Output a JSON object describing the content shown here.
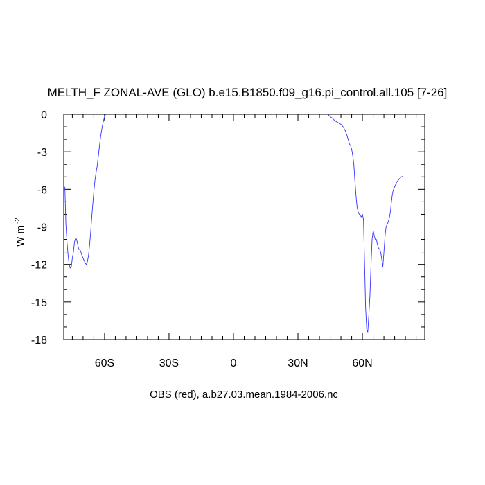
{
  "chart_data": {
    "type": "line",
    "title": "MELTH_F ZONAL-AVE (GLO) b.e15.B1850.f09_g16.pi_control.all.105 [7-26]",
    "xlabel": "OBS (red), a.b27.03.mean.1984-2006.nc",
    "ylabel": "W m",
    "ylabel_superscript": "-2",
    "xlim": [
      -79,
      89
    ],
    "ylim": [
      -18,
      0
    ],
    "x_ticks": [
      {
        "value": -60,
        "label": "60S"
      },
      {
        "value": -30,
        "label": "30S"
      },
      {
        "value": 0,
        "label": "0"
      },
      {
        "value": 30,
        "label": "30N"
      },
      {
        "value": 60,
        "label": "60N"
      }
    ],
    "y_ticks": [
      {
        "value": 0,
        "label": "0"
      },
      {
        "value": -3,
        "label": "-3"
      },
      {
        "value": -6,
        "label": "-6"
      },
      {
        "value": -9,
        "label": "-9"
      },
      {
        "value": -12,
        "label": "-12"
      },
      {
        "value": -15,
        "label": "-15"
      },
      {
        "value": -18,
        "label": "-18"
      }
    ],
    "series": [
      {
        "color": "#3333ff",
        "segments": [
          [
            [
              -78.5,
              -5.8
            ],
            [
              -78,
              -8.8
            ],
            [
              -77.5,
              -10.2
            ],
            [
              -77,
              -11.2
            ],
            [
              -76.5,
              -12.0
            ],
            [
              -76,
              -12.3
            ],
            [
              -75.5,
              -12.2
            ],
            [
              -75,
              -11.5
            ],
            [
              -74.5,
              -11.0
            ],
            [
              -74,
              -10.2
            ],
            [
              -73.5,
              -9.9
            ],
            [
              -73,
              -10.0
            ],
            [
              -72.5,
              -10.4
            ],
            [
              -72,
              -10.8
            ],
            [
              -71.5,
              -10.8
            ],
            [
              -71,
              -11.0
            ],
            [
              -70.5,
              -11.3
            ],
            [
              -70,
              -11.5
            ],
            [
              -69.5,
              -11.7
            ],
            [
              -69,
              -11.9
            ],
            [
              -68.5,
              -12.0
            ],
            [
              -68,
              -11.8
            ],
            [
              -67.5,
              -11.3
            ],
            [
              -67,
              -10.5
            ],
            [
              -66.5,
              -9.5
            ],
            [
              -66,
              -8.3
            ],
            [
              -65.5,
              -7.2
            ],
            [
              -65,
              -6.2
            ],
            [
              -64.5,
              -5.3
            ],
            [
              -64,
              -4.7
            ],
            [
              -63.5,
              -4.2
            ],
            [
              -63,
              -3.5
            ],
            [
              -62.5,
              -2.7
            ],
            [
              -62,
              -2.0
            ],
            [
              -61.5,
              -1.4
            ],
            [
              -61,
              -0.9
            ],
            [
              -60.5,
              -0.5
            ],
            [
              -60,
              -0.2
            ],
            [
              -59.5,
              0
            ]
          ],
          [
            [
              44,
              0
            ],
            [
              45,
              -0.2
            ],
            [
              46,
              -0.3
            ],
            [
              47,
              -0.5
            ],
            [
              48,
              -0.6
            ],
            [
              49,
              -0.7
            ],
            [
              50,
              -0.8
            ],
            [
              51,
              -1.0
            ],
            [
              52,
              -1.3
            ],
            [
              53,
              -1.8
            ],
            [
              54,
              -2.4
            ],
            [
              54.5,
              -2.5
            ],
            [
              55,
              -2.8
            ],
            [
              55.5,
              -3.3
            ],
            [
              56,
              -4.0
            ],
            [
              56.5,
              -5.3
            ],
            [
              57,
              -6.5
            ],
            [
              57.5,
              -7.4
            ],
            [
              58,
              -7.8
            ],
            [
              58.5,
              -8.0
            ],
            [
              59,
              -8.1
            ],
            [
              59.5,
              -8.2
            ],
            [
              60,
              -8.0
            ],
            [
              60.5,
              -8.4
            ],
            [
              61,
              -12.0
            ],
            [
              61.5,
              -15.5
            ],
            [
              62,
              -17.2
            ],
            [
              62.5,
              -17.4
            ],
            [
              63,
              -16.0
            ],
            [
              63.5,
              -14.5
            ],
            [
              64,
              -12.0
            ],
            [
              64.5,
              -10.0
            ],
            [
              65,
              -9.3
            ],
            [
              65.5,
              -9.7
            ],
            [
              66,
              -10.0
            ],
            [
              66.5,
              -10.0
            ],
            [
              67,
              -10.4
            ],
            [
              67.5,
              -10.7
            ],
            [
              68,
              -10.8
            ],
            [
              68.5,
              -11.0
            ],
            [
              69,
              -11.6
            ],
            [
              69.5,
              -12.2
            ],
            [
              70,
              -11.0
            ],
            [
              70.5,
              -9.8
            ],
            [
              71,
              -9.0
            ],
            [
              71.5,
              -8.8
            ],
            [
              72,
              -8.6
            ],
            [
              72.5,
              -8.3
            ],
            [
              73,
              -7.8
            ],
            [
              73.5,
              -7.0
            ],
            [
              74,
              -6.3
            ],
            [
              74.5,
              -6.0
            ],
            [
              75,
              -5.8
            ],
            [
              75.5,
              -5.6
            ],
            [
              76,
              -5.4
            ],
            [
              77,
              -5.2
            ],
            [
              78,
              -5.0
            ],
            [
              79,
              -4.95
            ]
          ]
        ]
      }
    ]
  }
}
